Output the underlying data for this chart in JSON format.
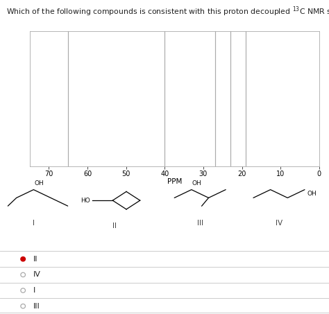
{
  "title_part1": "Which of the following compounds is consistent with this proton decoupled ",
  "title_superscript": "13",
  "title_part2": "C NMR spectrum?",
  "peaks": [
    65,
    40,
    27,
    23,
    19
  ],
  "xmin": 0,
  "xmax": 75,
  "xlabel": "PPM",
  "peak_color": "#aaaaaa",
  "bg_color": "#ffffff",
  "answer_options": [
    "II",
    "IV",
    "I",
    "III"
  ],
  "answer_selected": 0,
  "selected_color": "#cc0000",
  "unselected_color": "#aaaaaa",
  "divider_color": "#cccccc",
  "spine_color": "#aaaaaa"
}
